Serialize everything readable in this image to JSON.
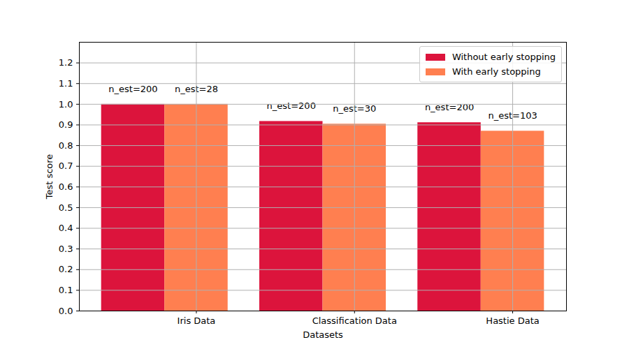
{
  "chart_data": {
    "type": "bar",
    "x_label": "Datasets",
    "y_label": "Test score",
    "categories": [
      "Iris Data",
      "Classification Data",
      "Hastie Data"
    ],
    "series": [
      {
        "name": "Without early stopping",
        "color": "#dc143c",
        "values": [
          1.0,
          0.917,
          0.911
        ],
        "annotations": [
          "n_est=200",
          "n_est=200",
          "n_est=200"
        ]
      },
      {
        "name": "With early stopping",
        "color": "#ff7f50",
        "values": [
          1.0,
          0.904,
          0.87
        ],
        "annotations": [
          "n_est=28",
          "n_est=30",
          "n_est=103"
        ]
      }
    ],
    "ylim": [
      0,
      1.3
    ],
    "yticks": [
      {
        "value": 0,
        "label": "0.0"
      },
      0.1,
      0.2,
      0.3,
      0.4,
      0.5,
      0.6,
      0.7,
      0.8,
      0.9,
      {
        "value": 1,
        "label": "1.0"
      },
      1.1,
      1.2
    ],
    "grid": true,
    "legend": "upper right"
  }
}
